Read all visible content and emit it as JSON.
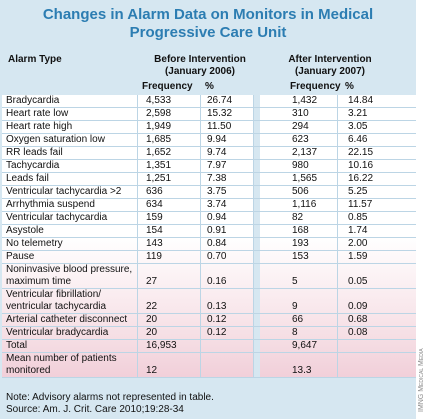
{
  "title_lines": [
    "Changes in Alarm Data on Monitors in Medical",
    "Progressive Care Unit"
  ],
  "table": {
    "headers": {
      "alarm_type": "Alarm Type",
      "before": {
        "label": "Before Intervention (January 2006)",
        "columns": [
          "Frequency",
          "%"
        ]
      },
      "after": {
        "label": "After Intervention (January 2007)",
        "columns": [
          "Frequency",
          "%"
        ]
      }
    },
    "rows": [
      [
        "Bradycardia",
        "4,533",
        "26.74",
        "1,432",
        "14.84"
      ],
      [
        "Heart rate low",
        "2,598",
        "15.32",
        "310",
        "3.21"
      ],
      [
        "Heart rate high",
        "1,949",
        "11.50",
        "294",
        "3.05"
      ],
      [
        "Oxygen saturation low",
        "1,685",
        "9.94",
        "623",
        "6.46"
      ],
      [
        "RR leads fail",
        "1,652",
        "9.74",
        "2,137",
        "22.15"
      ],
      [
        "Tachycardia",
        "1,351",
        "7.97",
        "980",
        "10.16"
      ],
      [
        "Leads fail",
        "1,251",
        "7.38",
        "1,565",
        "16.22"
      ],
      [
        "Ventricular tachycardia >2",
        "636",
        "3.75",
        "506",
        "5.25"
      ],
      [
        "Arrhythmia suspend",
        "634",
        "3.74",
        "1,116",
        "11.57"
      ],
      [
        "Ventricular tachycardia",
        "159",
        "0.94",
        "82",
        "0.85"
      ],
      [
        "Asystole",
        "154",
        "0.91",
        "168",
        "1.74"
      ],
      [
        "No telemetry",
        "143",
        "0.84",
        "193",
        "2.00"
      ],
      [
        "Pause",
        "119",
        "0.70",
        "153",
        "1.59"
      ],
      [
        "Noninvasive blood pressure, maximum time",
        "27",
        "0.16",
        "5",
        "0.05"
      ],
      [
        "Ventricular fibrillation/ ventricular tachycardia",
        "22",
        "0.13",
        "9",
        "0.09"
      ],
      [
        "Arterial catheter disconnect",
        "20",
        "0.12",
        "66",
        "0.68"
      ],
      [
        "Ventricular bradycardia",
        "20",
        "0.12",
        "8",
        "0.08"
      ],
      [
        "Total",
        "16,953",
        null,
        "9,647",
        null
      ],
      [
        "Mean number of patients monitored",
        "12",
        null,
        "13.3",
        null
      ]
    ]
  },
  "footnotes": [
    "Note: Advisory alarms not represented in table.",
    "Source: Am. J. Crit. Care 2010;19:28-34"
  ],
  "credit": "IMNG Medical Media"
}
